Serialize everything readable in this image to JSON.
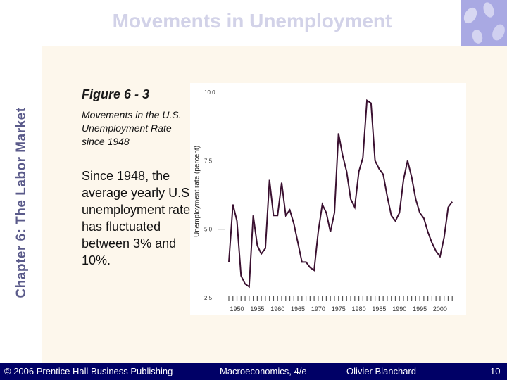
{
  "slide": {
    "title": "Movements in Unemployment",
    "side_title": "Chapter 6: The Labor Market",
    "figure_label": "Figure 6 - 3",
    "figure_caption": "Movements in the U.S. Unemployment Rate since 1948",
    "body_text": "Since 1948, the average yearly U.S. unemployment rate has fluctuated between 3% and 10%."
  },
  "footer": {
    "copyright": "© 2006 Prentice Hall Business Publishing",
    "book": "Macroeconomics, 4/e",
    "author": "Olivier Blanchard",
    "page": "10"
  },
  "colors": {
    "series": "#3a1030",
    "footer_bg": "#000066"
  },
  "chart_data": {
    "type": "line",
    "title": "",
    "xlabel": "",
    "ylabel": "Unemployment rate (percent)",
    "xlim": [
      1948,
      2004
    ],
    "ylim": [
      2.5,
      10.0
    ],
    "y_ticks": [
      "10.0",
      "7.5",
      "5.0",
      "2.5"
    ],
    "x_ticks": [
      "1950",
      "1955",
      "1960",
      "1965",
      "1970",
      "1975",
      "1980",
      "1985",
      "1990",
      "1995",
      "2000"
    ],
    "series": [
      {
        "name": "",
        "x": [
          1948,
          1949,
          1950,
          1951,
          1952,
          1953,
          1954,
          1955,
          1956,
          1957,
          1958,
          1959,
          1960,
          1961,
          1962,
          1963,
          1964,
          1965,
          1966,
          1967,
          1968,
          1969,
          1970,
          1971,
          1972,
          1973,
          1974,
          1975,
          1976,
          1977,
          1978,
          1979,
          1980,
          1981,
          1982,
          1983,
          1984,
          1985,
          1986,
          1987,
          1988,
          1989,
          1990,
          1991,
          1992,
          1993,
          1994,
          1995,
          1996,
          1997,
          1998,
          1999,
          2000,
          2001,
          2002,
          2003
        ],
        "values": [
          3.8,
          5.9,
          5.3,
          3.3,
          3.0,
          2.9,
          5.5,
          4.4,
          4.1,
          4.3,
          6.8,
          5.5,
          5.5,
          6.7,
          5.5,
          5.7,
          5.2,
          4.5,
          3.8,
          3.8,
          3.6,
          3.5,
          4.9,
          5.9,
          5.6,
          4.9,
          5.6,
          8.5,
          7.7,
          7.1,
          6.1,
          5.8,
          7.1,
          7.6,
          9.7,
          9.6,
          7.5,
          7.2,
          7.0,
          6.2,
          5.5,
          5.3,
          5.6,
          6.8,
          7.5,
          6.9,
          6.1,
          5.6,
          5.4,
          4.9,
          4.5,
          4.2,
          4.0,
          4.7,
          5.8,
          6.0
        ]
      }
    ]
  }
}
